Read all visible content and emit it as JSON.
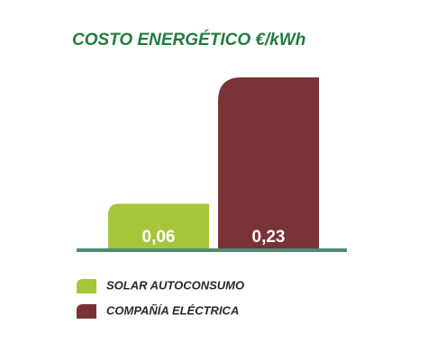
{
  "chart_data": {
    "type": "bar",
    "title": "COSTO ENERGÉTICO €/kWh",
    "categories": [
      null
    ],
    "series": [
      {
        "name": "SOLAR AUTOCONSUMO",
        "color": "#a6c63a",
        "values": [
          0.06
        ],
        "value_labels": [
          "0,06"
        ]
      },
      {
        "name": "COMPAÑÍA ELÉCTRICA",
        "color": "#7a3236",
        "values": [
          0.23
        ],
        "value_labels": [
          "0,23"
        ]
      }
    ]
  }
}
